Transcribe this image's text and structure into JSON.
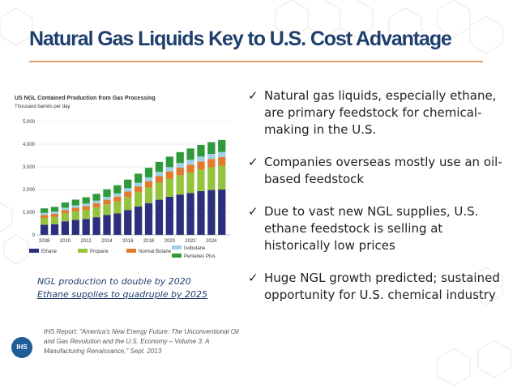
{
  "title": "Natural Gas Liquids Key to U.S. Cost Advantage",
  "chart_data": {
    "type": "bar",
    "stacked": true,
    "title": "US NGL Contained Production from Gas Processing",
    "ylabel": "Thousand barrels per day",
    "ylim": [
      0,
      5000
    ],
    "yticks": [
      "0",
      "1,000",
      "2,000",
      "3,000",
      "4,000",
      "5,000"
    ],
    "xticks": [
      "2008",
      "2010",
      "2012",
      "2014",
      "2016",
      "2018",
      "2020",
      "2022",
      "2024"
    ],
    "categories": [
      "2008",
      "2009",
      "2010",
      "2011",
      "2012",
      "2013",
      "2014",
      "2015",
      "2016",
      "2017",
      "2018",
      "2019",
      "2020",
      "2021",
      "2022",
      "2023",
      "2024",
      "2025"
    ],
    "series": [
      {
        "name": "Ethane",
        "color": "#2b2f7e",
        "values": [
          450,
          470,
          600,
          660,
          700,
          780,
          880,
          950,
          1100,
          1250,
          1400,
          1550,
          1680,
          1780,
          1850,
          1930,
          1980,
          2000
        ]
      },
      {
        "name": "Propane",
        "color": "#94c43e",
        "values": [
          300,
          320,
          350,
          380,
          400,
          430,
          470,
          520,
          570,
          630,
          690,
          750,
          800,
          850,
          900,
          950,
          1000,
          1050
        ]
      },
      {
        "name": "Normal Butane",
        "color": "#e07b2e",
        "values": [
          130,
          140,
          150,
          160,
          170,
          180,
          200,
          220,
          240,
          260,
          280,
          300,
          320,
          340,
          350,
          360,
          370,
          380
        ]
      },
      {
        "name": "Isobutane",
        "color": "#9fd0e8",
        "values": [
          90,
          95,
          100,
          105,
          110,
          120,
          130,
          140,
          150,
          160,
          170,
          180,
          190,
          200,
          210,
          215,
          220,
          225
        ]
      },
      {
        "name": "Pentanes Plus",
        "color": "#2f9a3c",
        "values": [
          200,
          210,
          230,
          250,
          280,
          300,
          330,
          360,
          380,
          400,
          420,
          440,
          460,
          480,
          500,
          510,
          520,
          530
        ]
      }
    ]
  },
  "bullets": [
    {
      "check": "✓",
      "text": "Natural gas liquids, especially ethane, are primary feedstock for chemical-making in the U.S."
    },
    {
      "check": "✓",
      "text": "Companies overseas mostly use an oil-based feedstock"
    },
    {
      "check": "✓",
      "text": "Due to vast new NGL supplies, U.S. ethane feedstock is selling at historically low prices"
    },
    {
      "check": "✓",
      "text": "Huge NGL growth predicted; sustained opportunity for U.S. chemical industry"
    }
  ],
  "caption": {
    "line1": "NGL production to double by 2020",
    "line2": "Ethane supplies to quadruple by 2025"
  },
  "reference": "IHS Report: \"America's New Energy Future: The Unconventional Oil and Gas Revolution and the U.S. Economy – Volume 3: A Manufacturing Renaissance,\" Sept. 2013",
  "logo_text": "IHS"
}
